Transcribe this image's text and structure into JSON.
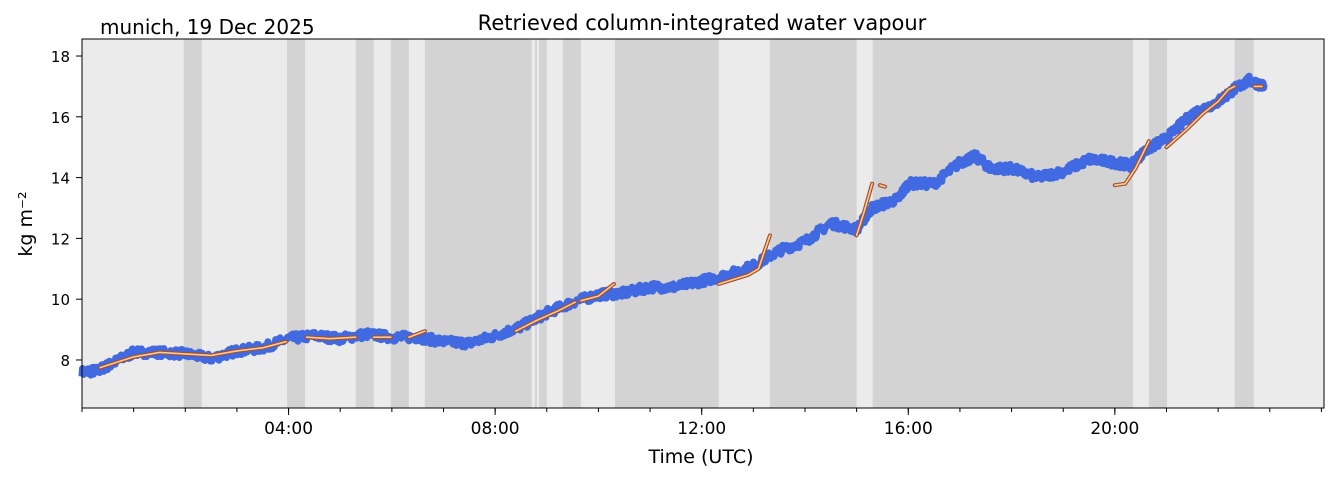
{
  "chart_data": {
    "type": "line",
    "title": "Retrieved column-integrated water vapour",
    "subtitle": "munich, 19 Dec 2025",
    "xlabel": "Time (UTC)",
    "ylabel": "kg m⁻²",
    "xlim_hours": [
      0,
      24.05
    ],
    "ylim": [
      6.42,
      18.56
    ],
    "x_ticks": [
      {
        "h": 4,
        "label": "04:00"
      },
      {
        "h": 8,
        "label": "08:00"
      },
      {
        "h": 12,
        "label": "12:00"
      },
      {
        "h": 16,
        "label": "16:00"
      },
      {
        "h": 20,
        "label": "20:00"
      }
    ],
    "y_ticks": [
      8,
      10,
      12,
      14,
      16,
      18
    ],
    "colors": {
      "background": "#ebebeb",
      "shade": "#d3d3d3",
      "retrieval": "#4169e1",
      "smooth_edge": "#a0522d",
      "smooth_fill": "#ffc89a"
    },
    "shaded_periods_hours": [
      [
        1.97,
        2.32
      ],
      [
        3.97,
        4.32
      ],
      [
        5.3,
        5.65
      ],
      [
        5.98,
        6.33
      ],
      [
        6.64,
        8.71
      ],
      [
        8.77,
        8.81
      ],
      [
        8.85,
        9.0
      ],
      [
        9.31,
        9.66
      ],
      [
        10.32,
        12.33
      ],
      [
        13.32,
        15.0
      ],
      [
        15.31,
        20.35
      ],
      [
        20.66,
        21.01
      ],
      [
        22.32,
        22.69
      ]
    ],
    "series": [
      {
        "name": "retrieval",
        "points": [
          [
            0,
            7.6
          ],
          [
            0.3,
            7.65
          ],
          [
            0.6,
            7.9
          ],
          [
            1,
            8.25
          ],
          [
            1.5,
            8.25
          ],
          [
            2,
            8.2
          ],
          [
            2.5,
            8.05
          ],
          [
            3,
            8.3
          ],
          [
            3.5,
            8.4
          ],
          [
            4,
            8.7
          ],
          [
            4.5,
            8.8
          ],
          [
            5,
            8.7
          ],
          [
            5.5,
            8.85
          ],
          [
            6,
            8.75
          ],
          [
            6.5,
            8.75
          ],
          [
            7,
            8.6
          ],
          [
            7.5,
            8.55
          ],
          [
            8,
            8.8
          ],
          [
            8.5,
            9.1
          ],
          [
            9,
            9.55
          ],
          [
            9.5,
            9.9
          ],
          [
            10,
            10.15
          ],
          [
            10.5,
            10.2
          ],
          [
            11,
            10.4
          ],
          [
            11.5,
            10.4
          ],
          [
            12,
            10.6
          ],
          [
            12.5,
            10.8
          ],
          [
            13,
            11.1
          ],
          [
            13.5,
            11.6
          ],
          [
            14,
            11.9
          ],
          [
            14.5,
            12.5
          ],
          [
            15,
            12.3
          ],
          [
            15.3,
            13.0
          ],
          [
            15.8,
            13.3
          ],
          [
            16,
            13.8
          ],
          [
            16.5,
            13.8
          ],
          [
            17,
            14.5
          ],
          [
            17.3,
            14.7
          ],
          [
            17.6,
            14.3
          ],
          [
            18,
            14.3
          ],
          [
            18.5,
            14.0
          ],
          [
            19,
            14.2
          ],
          [
            19.5,
            14.6
          ],
          [
            20,
            14.5
          ],
          [
            20.3,
            14.4
          ],
          [
            20.6,
            14.9
          ],
          [
            21,
            15.3
          ],
          [
            21.5,
            16.1
          ],
          [
            22,
            16.5
          ],
          [
            22.3,
            16.9
          ],
          [
            22.6,
            17.2
          ],
          [
            22.9,
            17.0
          ]
        ]
      },
      {
        "name": "smoothed",
        "segments": [
          [
            [
              0.35,
              7.75
            ],
            [
              1,
              8.1
            ],
            [
              1.5,
              8.25
            ],
            [
              2,
              8.2
            ],
            [
              2.5,
              8.15
            ],
            [
              3,
              8.3
            ],
            [
              3.5,
              8.4
            ],
            [
              3.95,
              8.6
            ]
          ],
          [
            [
              4.35,
              8.75
            ],
            [
              4.8,
              8.7
            ],
            [
              5.3,
              8.75
            ]
          ],
          [
            [
              5.65,
              8.75
            ],
            [
              5.98,
              8.75
            ]
          ],
          [
            [
              6.33,
              8.75
            ],
            [
              6.64,
              8.95
            ]
          ],
          [
            [
              8.4,
              8.95
            ],
            [
              8.8,
              9.3
            ],
            [
              9.2,
              9.6
            ],
            [
              9.55,
              9.9
            ]
          ],
          [
            [
              9.66,
              9.95
            ],
            [
              10.0,
              10.1
            ],
            [
              10.3,
              10.5
            ]
          ],
          [
            [
              12.33,
              10.5
            ],
            [
              12.9,
              10.8
            ],
            [
              13.1,
              11.0
            ],
            [
              13.32,
              12.1
            ]
          ],
          [
            [
              15.0,
              12.1
            ],
            [
              15.15,
              12.9
            ],
            [
              15.3,
              13.8
            ]
          ],
          [
            [
              15.45,
              13.75
            ],
            [
              15.55,
              13.7
            ]
          ],
          [
            [
              20.0,
              13.75
            ],
            [
              20.2,
              13.8
            ],
            [
              20.4,
              14.3
            ],
            [
              20.66,
              15.2
            ]
          ],
          [
            [
              21.0,
              15.0
            ],
            [
              21.4,
              15.6
            ],
            [
              21.7,
              16.1
            ],
            [
              22.0,
              16.5
            ],
            [
              22.2,
              16.9
            ],
            [
              22.32,
              17.0
            ]
          ],
          [
            [
              22.7,
              17.0
            ],
            [
              22.85,
              17.0
            ]
          ]
        ]
      }
    ]
  }
}
